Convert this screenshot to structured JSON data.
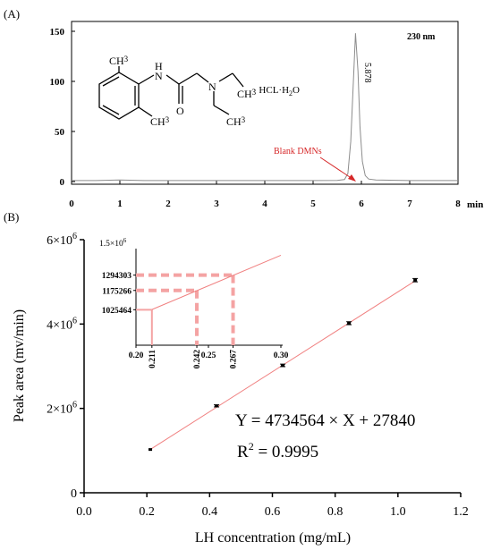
{
  "panel_a": {
    "label": "(A)",
    "wavelength": "230 nm",
    "peak_label": "5.878",
    "blank_label": "Blank DMNs",
    "x_unit": "min",
    "molecule": {
      "ch3_top": "CH",
      "ch3_top_sub": "3",
      "ch3_bottom": "CH",
      "ch3_bottom_sub": "3",
      "ch3_right1": "CH",
      "ch3_right1_sub": "3",
      "ch3_right2": "CH",
      "ch3_right2_sub": "3",
      "nh_n": "N",
      "nh_h": "H",
      "o": "O",
      "amine_n": "N",
      "salt": "·  HCL·H",
      "salt_sub": "2",
      "salt_end": "O"
    }
  },
  "panel_b": {
    "label": "(B)",
    "equation": "Y = 4734564 × X + 27840",
    "r2_prefix": "R",
    "r2_sup": "2",
    "r2_value": " = 0.9995",
    "inset_top_label": "1.5×10",
    "inset_top_sup": "6"
  },
  "chart_data": [
    {
      "type": "line",
      "title": "",
      "xlabel": "",
      "ylabel": "",
      "x_unit": "min",
      "xlim": [
        0,
        8
      ],
      "ylim": [
        0,
        155
      ],
      "x_ticks": [
        "0",
        "1",
        "2",
        "3",
        "4",
        "5",
        "6",
        "7",
        "8"
      ],
      "y_ticks": [
        "0",
        "50",
        "100",
        "150"
      ],
      "series": [
        {
          "x": [
            0,
            0.5,
            1.0,
            1.5,
            2.0,
            3.0,
            4.0,
            5.0,
            5.5,
            5.65,
            5.72,
            5.78,
            5.83,
            5.878,
            5.93,
            5.97,
            6.02,
            6.08,
            6.15,
            6.3,
            7.0,
            8.0
          ],
          "y": [
            1,
            1,
            1.6,
            1,
            1,
            1,
            1,
            1,
            1.2,
            2,
            8,
            40,
            95,
            148,
            110,
            55,
            20,
            6,
            2.5,
            1.5,
            1,
            1
          ]
        }
      ],
      "annotations": [
        "230 nm",
        "5.878",
        "Blank DMNs"
      ]
    },
    {
      "type": "scatter",
      "title": "",
      "xlabel": "LH concentration (mg/mL)",
      "ylabel": "Peak area (mv/min)",
      "xlim": [
        0,
        1.2
      ],
      "ylim": [
        0,
        6000000
      ],
      "x_ticks": [
        "0.0",
        "0.2",
        "0.4",
        "0.6",
        "0.8",
        "1.0",
        "1.2"
      ],
      "y_ticks": [
        "0",
        "2×10",
        "4×10",
        "6×10"
      ],
      "y_tick_sup": "6",
      "series": [
        {
          "x": [
            0.211,
            0.422,
            0.633,
            0.844,
            1.055
          ],
          "y": [
            1025464,
            2060000,
            3020000,
            4020000,
            5040000
          ],
          "error": [
            0,
            25000,
            30000,
            35000,
            40000
          ]
        }
      ],
      "fit": {
        "slope": 4734564,
        "intercept": 27840,
        "x_range": [
          0.211,
          1.055
        ]
      },
      "inset": {
        "xlim": [
          0.2,
          0.3
        ],
        "ylim": [
          750000,
          1500000
        ],
        "x_ticks": [
          "0.20",
          "0.211",
          "0.242",
          "0.25",
          "0.267",
          "0.30"
        ],
        "y_ticks": [
          "1025464",
          "1175266",
          "1294303"
        ],
        "markers": [
          {
            "x": 0.211,
            "y": 1025464
          },
          {
            "x": 0.242,
            "y": 1175266
          },
          {
            "x": 0.267,
            "y": 1294303
          }
        ],
        "line_x_range": [
          0.211,
          0.3
        ]
      }
    }
  ]
}
